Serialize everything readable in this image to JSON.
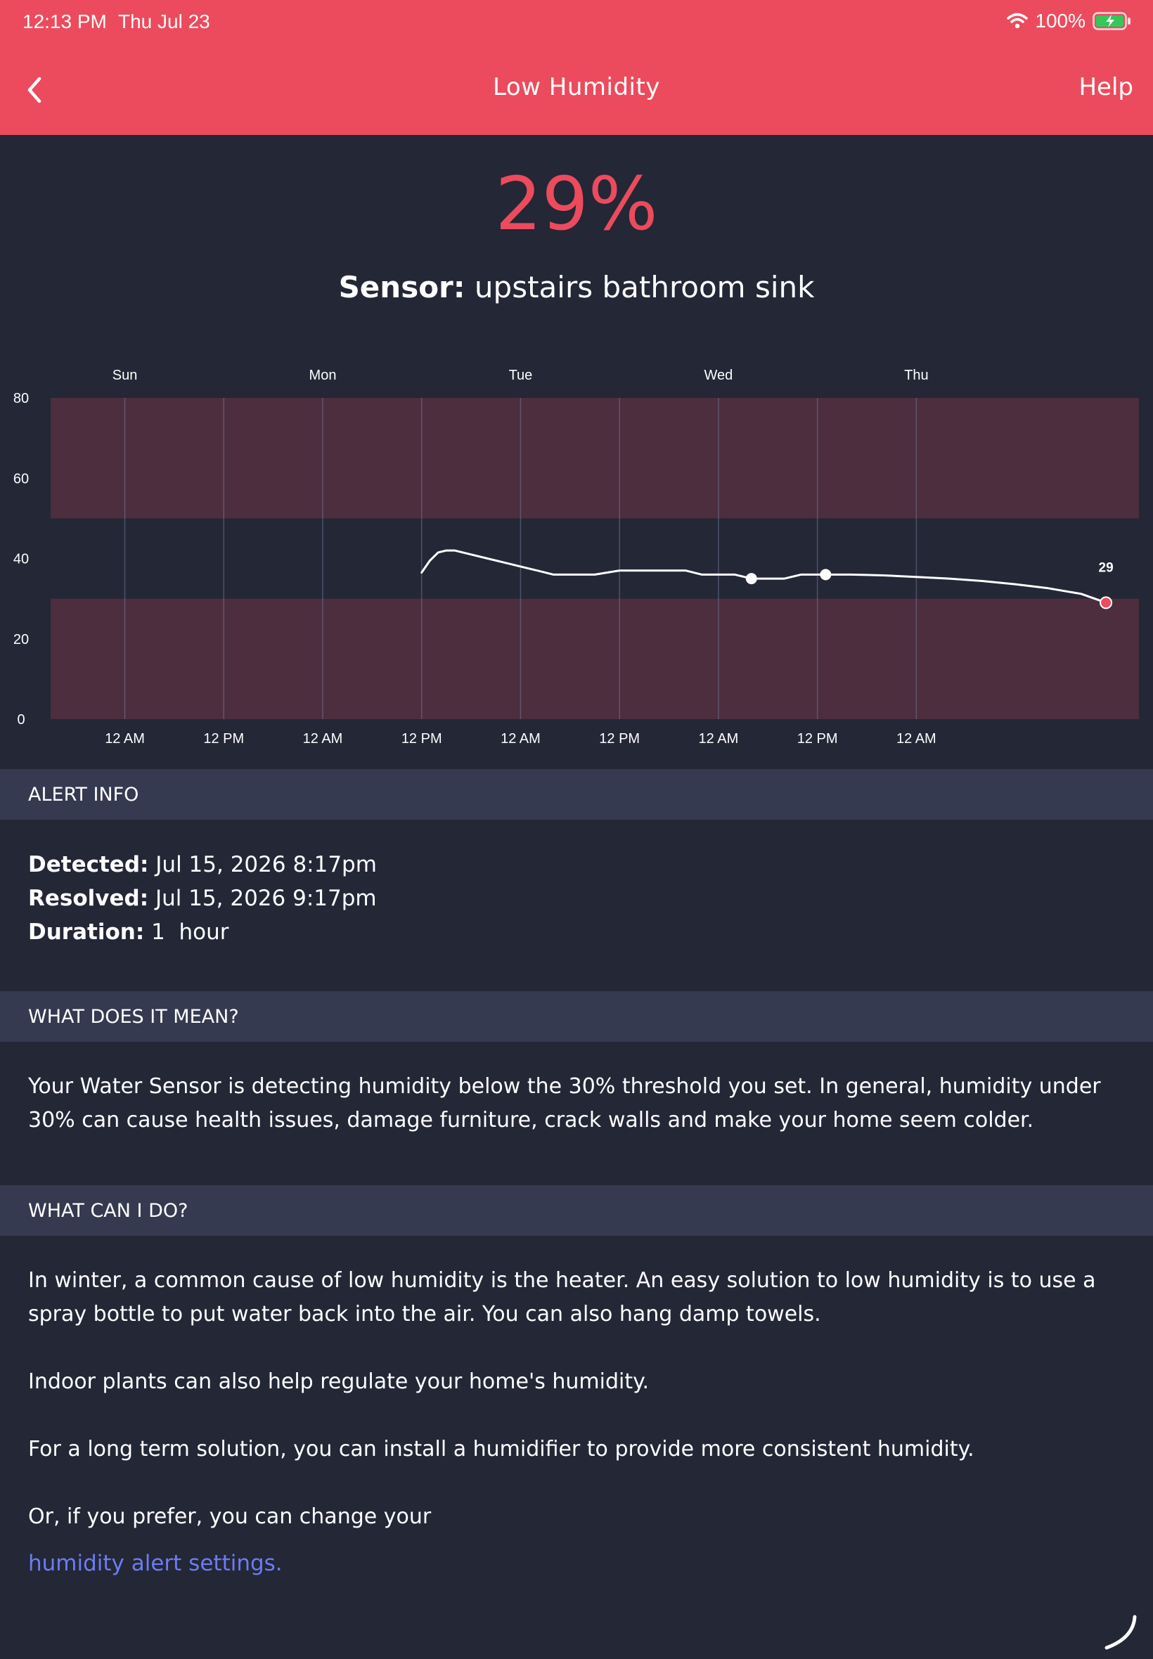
{
  "status_bar": {
    "time": "12:13 PM",
    "date": "Thu Jul 23",
    "battery": "100%",
    "wifi_icon": "wifi-icon",
    "battery_icon": "battery-charging-icon"
  },
  "nav": {
    "back_icon": "chevron-left-icon",
    "title": "Low Humidity",
    "help_label": "Help"
  },
  "reading": {
    "value": "29%",
    "sensor_label": "Sensor:",
    "sensor_name": "upstairs bathroom sink"
  },
  "chart_data": {
    "type": "line",
    "day_labels": [
      "Sun",
      "Mon",
      "Tue",
      "Wed",
      "Thu"
    ],
    "time_labels": [
      "12 AM",
      "12 PM",
      "12 AM",
      "12 PM",
      "12 AM",
      "12 PM",
      "12 AM",
      "12 PM",
      "12 AM"
    ],
    "y_ticks": [
      "80",
      "60",
      "40",
      "20",
      "0"
    ],
    "ylim": [
      0,
      80
    ],
    "xlim_hours": [
      -9,
      123
    ],
    "alert_bands": [
      [
        0,
        30
      ],
      [
        50,
        80
      ]
    ],
    "series": [
      {
        "x_hours": [
          36,
          37,
          38,
          39,
          40,
          42,
          44,
          46,
          48,
          50,
          52,
          54,
          57,
          60,
          62,
          64,
          66,
          68,
          70,
          72,
          74,
          76,
          78,
          80,
          82,
          84,
          86,
          88,
          90,
          92,
          94,
          96,
          100,
          104,
          108,
          112,
          116,
          119
        ],
        "y": [
          36.5,
          39.5,
          41.5,
          42,
          42,
          41,
          40,
          39,
          38,
          37,
          36,
          36,
          36,
          37,
          37,
          37,
          37,
          37,
          36,
          36,
          36,
          35,
          35,
          35,
          36,
          36,
          36,
          36,
          35.9,
          35.8,
          35.6,
          35.4,
          35,
          34.4,
          33.6,
          32.6,
          31.2,
          29
        ]
      }
    ],
    "markers_hours": [
      76,
      85
    ],
    "last_value_label": "29",
    "colors": {
      "line": "#ffffff",
      "band": "#4d2e3e",
      "last_point": "#ec4b5d"
    }
  },
  "sections": {
    "alert_info": {
      "header": "ALERT INFO",
      "detected_label": "Detected:",
      "detected_value": "Jul 15, 2026 8:17pm",
      "resolved_label": "Resolved:",
      "resolved_value": "Jul 15, 2026 9:17pm",
      "duration_label": "Duration:",
      "duration_value": "1  hour"
    },
    "meaning": {
      "header": "WHAT DOES IT MEAN?",
      "text": "Your Water Sensor is detecting humidity below the 30% threshold you set. In general, humidity under 30% can cause health issues, damage furniture, crack walls and make your home seem colder."
    },
    "actions": {
      "header": "WHAT CAN I DO?",
      "p1": "In winter, a common cause of low humidity is the heater. An easy solution to low humidity is to use a spray bottle to put water back into the air. You can also hang damp towels.",
      "p2": "Indoor plants can also help regulate your home's humidity.",
      "p3": "For a long term solution, you can install a humidifier to provide more consistent humidity.",
      "p4": "Or, if you prefer, you can change your",
      "link": "humidity alert settings."
    }
  },
  "colors": {
    "accent": "#ec4b5d",
    "background": "#232736",
    "section_header": "#353a50",
    "link": "#6d7cf0"
  }
}
